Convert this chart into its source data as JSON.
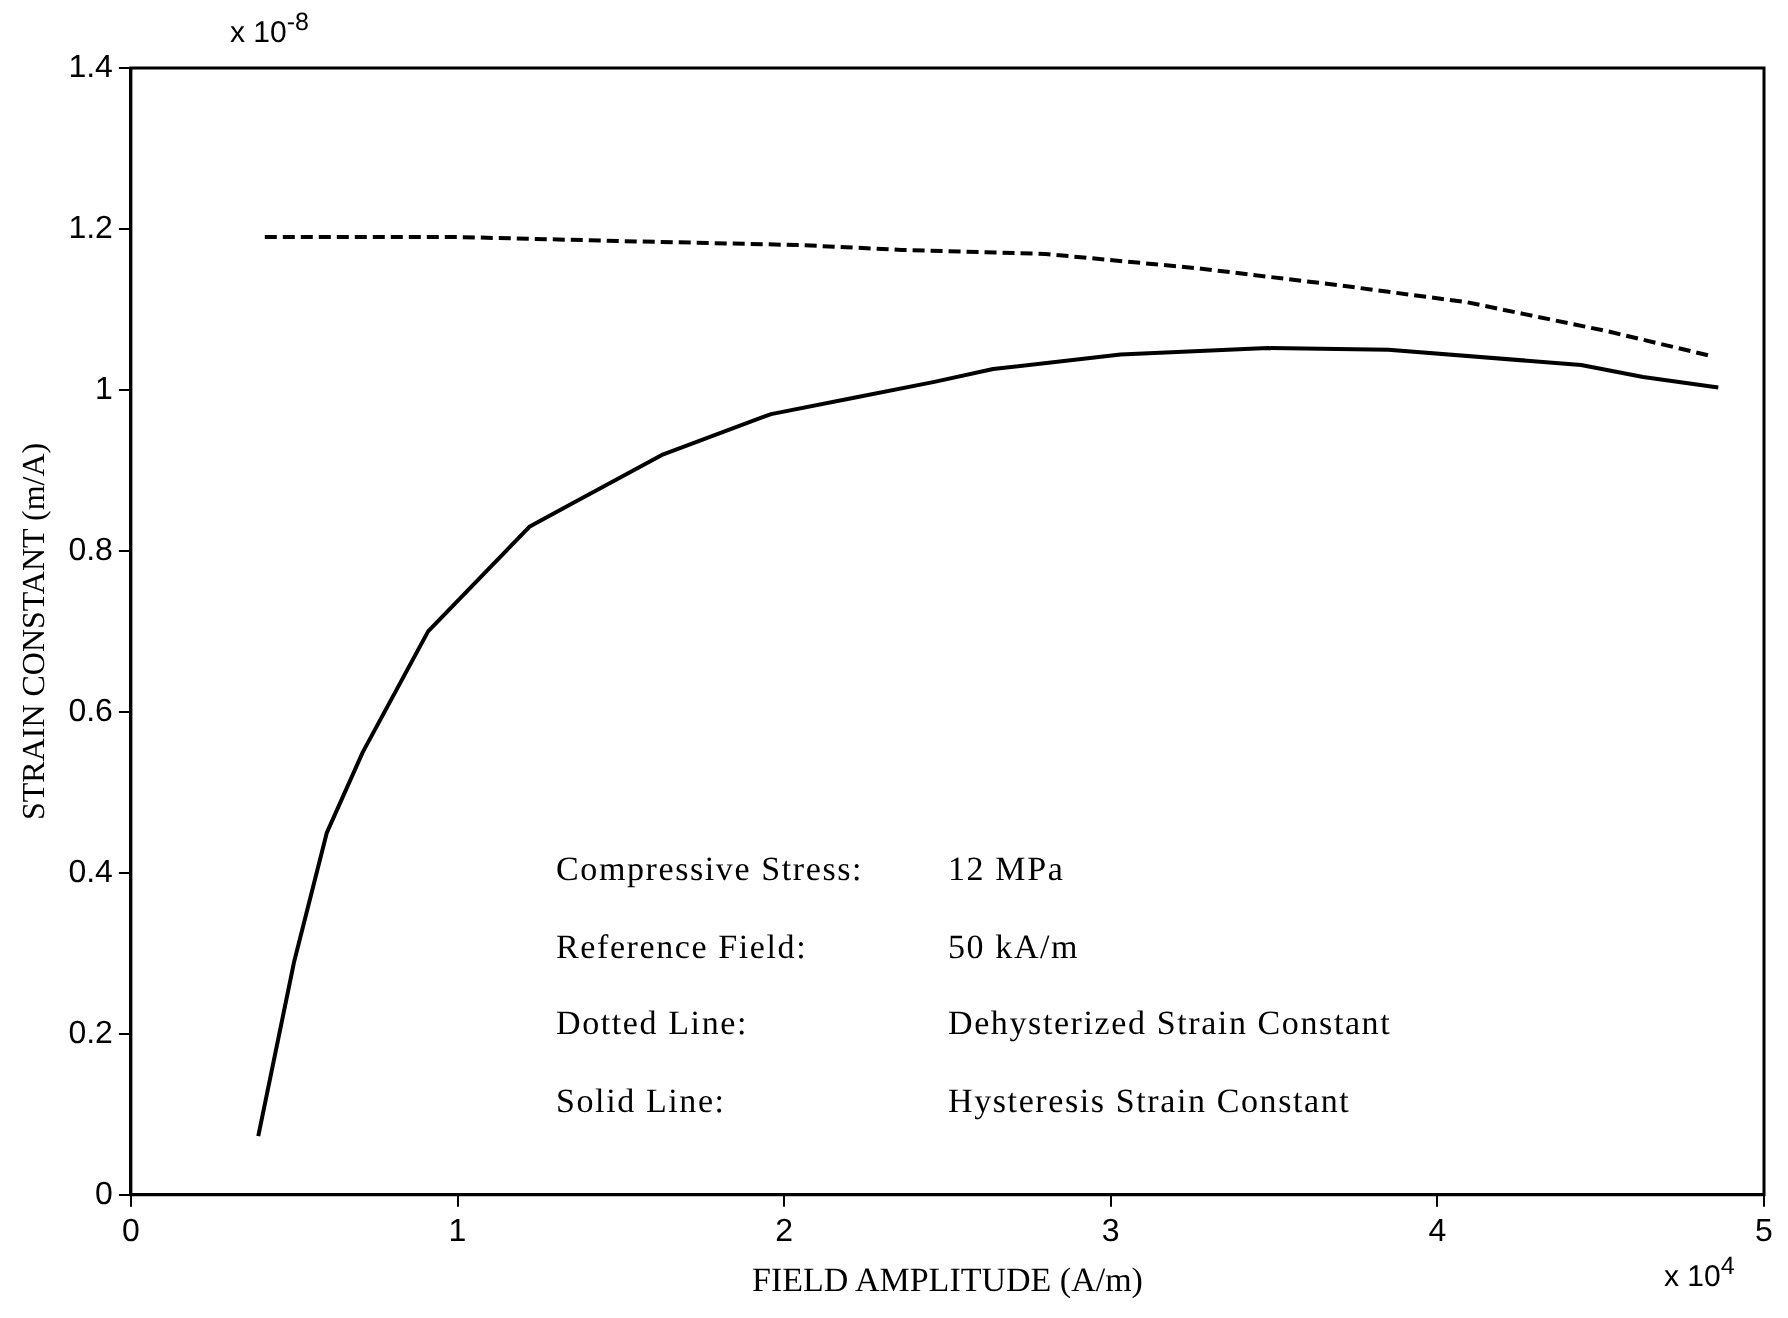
{
  "chart_data": {
    "type": "line",
    "xlabel": "FIELD AMPLITUDE (A/m)",
    "ylabel": "STRAIN CONSTANT (m/A)",
    "annotations": [
      "x 10$^{-8}$",
      "x 10$^{4}$",
      "Compressive Stress: 12 MPa",
      "Reference Field: 50 kA/m",
      "Dotted Line: Dehysterized Strain Constant",
      "Solid Line: Hysteresis Strain Constant"
    ],
    "xlim": [
      0,
      5
    ],
    "xticks": [
      0,
      1,
      2,
      3,
      4,
      5
    ],
    "ylim": [
      0,
      1.4
    ],
    "yticks": [
      0,
      0.2,
      0.4,
      0.6,
      0.8,
      1,
      1.2,
      1.4
    ],
    "grid": false,
    "legend": false,
    "marker": "none",
    "series": [
      {
        "color": "#000000",
        "line_style": "dashed",
        "x": [
          0.41,
          1.0,
          1.5,
          2.05,
          2.36,
          2.8,
          3.27,
          3.7,
          4.09,
          4.52,
          4.84
        ],
        "values": [
          1.19,
          1.19,
          1.185,
          1.18,
          1.174,
          1.169,
          1.151,
          1.13,
          1.109,
          1.073,
          1.042
        ]
      },
      {
        "color": "#000000",
        "line_style": "solid",
        "x": [
          0.39,
          0.5,
          0.6,
          0.71,
          0.91,
          1.22,
          1.31,
          1.63,
          1.96,
          2.21,
          2.46,
          2.64,
          3.03,
          3.48,
          3.85,
          4.44,
          4.63,
          4.86
        ],
        "values": [
          0.073,
          0.29,
          0.45,
          0.55,
          0.7,
          0.83,
          0.85,
          0.92,
          0.97,
          0.99,
          1.01,
          1.026,
          1.044,
          1.052,
          1.05,
          1.031,
          1.016,
          1.003
        ]
      }
    ]
  }
}
